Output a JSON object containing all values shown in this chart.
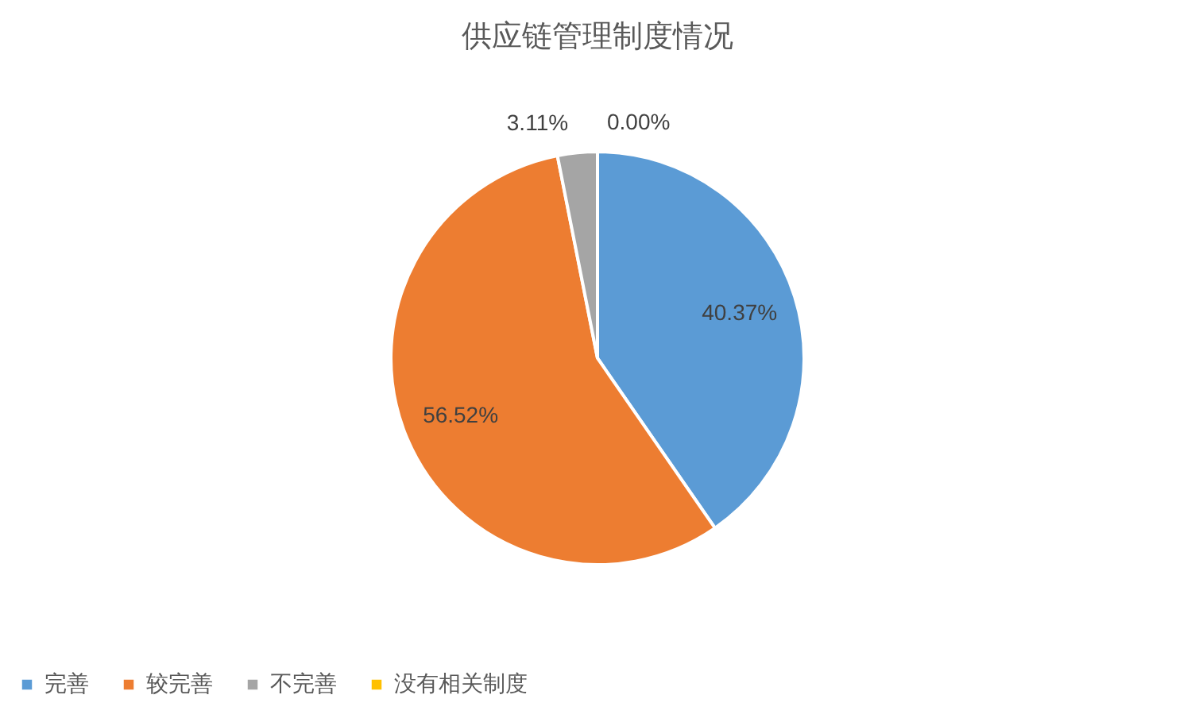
{
  "chart_data": {
    "type": "pie",
    "title": "供应链管理制度情况",
    "categories": [
      "完善",
      "较完善",
      "不完善",
      "没有相关制度"
    ],
    "values": [
      40.37,
      56.52,
      3.11,
      0.0
    ],
    "colors": [
      "#5b9bd5",
      "#ed7d31",
      "#a5a5a5",
      "#ffc000"
    ],
    "value_labels": [
      "40.37%",
      "56.52%",
      "3.11%",
      "0.00%"
    ],
    "legend": "bottom"
  }
}
